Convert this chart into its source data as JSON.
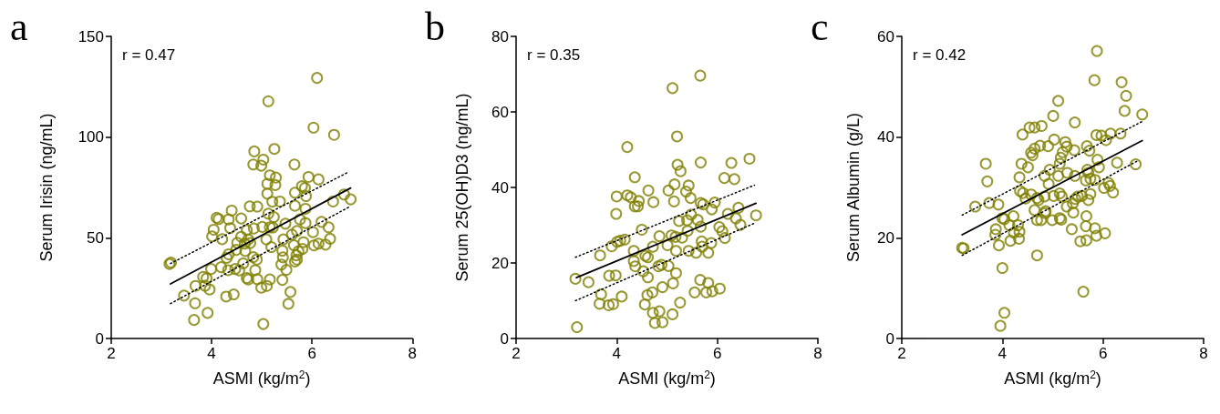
{
  "chart_data": [
    {
      "type": "scatter",
      "title": "a",
      "xlabel": "ASMI (kg/m$^{2}$)",
      "ylabel": "Serum Irisin (ng/mL)",
      "annotations": [
        "r = 0.47"
      ],
      "xlim": [
        2,
        8
      ],
      "xticks": [
        2,
        4,
        6,
        8
      ],
      "ylim": [
        0,
        150
      ],
      "yticks": [
        0,
        50,
        100,
        150
      ],
      "grid": false,
      "marker": "circle",
      "series": [
        {
          "color": "#808000",
          "x": [
            6.1,
            5.13,
            6.03,
            6.44,
            5.25,
            4.85,
            5.03,
            4.83,
            4.99,
            5.65,
            5.16,
            5.28,
            5.93,
            6.13,
            5.11,
            5.27,
            5.8,
            5.86,
            5.66,
            5.88,
            5.11,
            5.21,
            5.36,
            6.42,
            6.64,
            6.77,
            4.76,
            4.91,
            5.66,
            5.87,
            5.13,
            5.24,
            4.4,
            4.1,
            4.14,
            4.34,
            4.59,
            5.47,
            5.76,
            5.87,
            6.19,
            6.33,
            4.37,
            4.04,
            4.01,
            4.21,
            4.7,
            4.84,
            5.01,
            5.16,
            5.22,
            5.7,
            5.6,
            6.02,
            4.59,
            4.73,
            5.09,
            5.43,
            4.51,
            4.66,
            4.77,
            5.19,
            5.64,
            5.83,
            6.04,
            6.13,
            6.27,
            6.36,
            4.49,
            4.67,
            5.41,
            5.73,
            5.81,
            4.34,
            4.3,
            4.83,
            4.9,
            5.42,
            5.69,
            5.7,
            5.66,
            3.19,
            3.16,
            4.63,
            5.39,
            3.99,
            4.19,
            4.33,
            4.47,
            4.55,
            4.87,
            5.49,
            3.83,
            3.9,
            4.7,
            4.73,
            4.91,
            5.16,
            5.41,
            3.68,
            3.87,
            3.96,
            4.99,
            5.1,
            3.45,
            4.29,
            4.44,
            5.57,
            3.67,
            5.53,
            3.92,
            3.65,
            5.03
          ],
          "values": [
            129.4,
            117.8,
            104.7,
            101.1,
            94.1,
            92.9,
            88.8,
            86.4,
            85.8,
            86.4,
            81.0,
            79.9,
            80.2,
            79.0,
            76.8,
            76.2,
            75.6,
            74.7,
            72.4,
            70.7,
            71.9,
            67.9,
            68.0,
            68.0,
            71.5,
            69.1,
            65.6,
            65.5,
            65.9,
            64.4,
            62.0,
            60.3,
            63.5,
            59.9,
            59.3,
            59.1,
            59.6,
            57.0,
            59.1,
            57.3,
            57.9,
            55.2,
            54.8,
            54.0,
            50.7,
            49.3,
            53.8,
            54.6,
            55.4,
            55.2,
            55.1,
            53.4,
            51.6,
            52.8,
            50.5,
            49.2,
            49.2,
            49.2,
            47.5,
            47.1,
            47.4,
            45.4,
            46.3,
            47.8,
            46.2,
            47.1,
            46.6,
            49.5,
            44.0,
            43.4,
            43.6,
            43.3,
            44.5,
            41.8,
            40.0,
            40.4,
            39.2,
            40.3,
            41.3,
            39.2,
            38.2,
            37.7,
            37.0,
            37.3,
            36.7,
            34.5,
            35.4,
            33.9,
            34.5,
            33.8,
            33.9,
            34.1,
            30.6,
            29.9,
            30.0,
            29.3,
            29.4,
            29.3,
            29.1,
            26.1,
            26.2,
            24.3,
            25.2,
            26.1,
            21.3,
            20.8,
            21.9,
            23.1,
            17.5,
            17.2,
            12.7,
            9.2,
            7.2
          ]
        },
        {
          "type": "line",
          "color": "#000000",
          "line_style": "solid",
          "marker": "none",
          "x": [
            3.18,
            6.77
          ],
          "values": [
            27.1,
            74.7
          ]
        },
        {
          "type": "line",
          "color": "#000000",
          "line_style": "dotted",
          "marker": "none",
          "x": [
            3.18,
            6.74
          ],
          "values": [
            37.2,
            82.8
          ]
        },
        {
          "type": "line",
          "color": "#000000",
          "line_style": "dotted",
          "marker": "none",
          "x": [
            3.18,
            6.74
          ],
          "values": [
            17.3,
            65.3
          ]
        }
      ]
    },
    {
      "type": "scatter",
      "title": "b",
      "xlabel": "ASMI (kg/m$^{2}$)",
      "ylabel": "Serum 25(OH)D3 (ng/mL)",
      "annotations": [
        "r = 0.35"
      ],
      "xlim": [
        2,
        8
      ],
      "xticks": [
        2,
        4,
        6,
        8
      ],
      "ylim": [
        0,
        80
      ],
      "yticks": [
        0,
        20,
        40,
        60,
        80
      ],
      "grid": false,
      "marker": "circle",
      "series": [
        {
          "color": "#808000",
          "x": [
            5.66,
            5.11,
            5.2,
            4.21,
            5.67,
            5.21,
            5.27,
            6.28,
            6.64,
            4.36,
            6.14,
            6.34,
            5.15,
            5.43,
            5.03,
            4.63,
            5.38,
            4.0,
            4.21,
            4.28,
            4.44,
            4.36,
            4.42,
            4.73,
            5.14,
            5.47,
            5.67,
            5.72,
            5.95,
            5.89,
            6.42,
            6.21,
            3.99,
            5.24,
            5.4,
            5.48,
            5.61,
            6.77,
            6.37,
            6.46,
            4.5,
            5.41,
            5.67,
            6.04,
            6.1,
            6.15,
            4.85,
            5.09,
            5.17,
            5.3,
            5.01,
            4.01,
            4.07,
            4.16,
            3.9,
            4.72,
            5.69,
            5.88,
            5.7,
            3.67,
            4.34,
            4.57,
            4.62,
            5.18,
            5.43,
            5.58,
            5.82,
            4.34,
            4.37,
            4.83,
            4.89,
            5.03,
            4.53,
            5.18,
            3.18,
            3.44,
            3.85,
            3.98,
            4.62,
            5.12,
            4.91,
            5.66,
            5.82,
            5.55,
            5.78,
            5.9,
            6.05,
            3.69,
            4.1,
            4.61,
            4.71,
            3.66,
            3.84,
            3.93,
            4.56,
            5.26,
            4.72,
            4.85,
            5.11,
            4.76,
            4.91,
            3.21
          ],
          "values": [
            69.6,
            66.3,
            53.5,
            50.7,
            46.6,
            46.0,
            44.3,
            46.5,
            47.6,
            42.7,
            42.5,
            42.2,
            40.8,
            40.5,
            39.2,
            39.2,
            38.9,
            37.6,
            37.9,
            37.4,
            36.4,
            35.0,
            35.0,
            36.1,
            36.3,
            37.2,
            35.9,
            35.5,
            36.0,
            34.2,
            34.6,
            33.0,
            33.0,
            31.1,
            31.3,
            32.8,
            31.4,
            32.6,
            31.8,
            30.1,
            28.8,
            28.5,
            29.6,
            29.5,
            28.4,
            26.6,
            27.1,
            27.3,
            26.9,
            26.7,
            24.7,
            25.6,
            25.9,
            26.2,
            24.4,
            24.3,
            25.7,
            25.3,
            24.3,
            22.0,
            23.2,
            21.9,
            21.5,
            23.2,
            23.2,
            22.7,
            22.7,
            20.5,
            19.1,
            19.1,
            19.5,
            19.2,
            17.8,
            17.3,
            15.8,
            14.9,
            16.6,
            16.7,
            16.2,
            14.6,
            13.6,
            15.5,
            14.7,
            12.2,
            12.2,
            12.5,
            13.2,
            11.7,
            11.1,
            11.5,
            12.2,
            9.2,
            8.8,
            9.1,
            9.0,
            9.5,
            6.8,
            7.2,
            6.4,
            4.1,
            4.3,
            3.0
          ]
        },
        {
          "type": "line",
          "color": "#000000",
          "line_style": "solid",
          "marker": "none",
          "x": [
            3.2,
            6.77
          ],
          "values": [
            16.1,
            35.8
          ]
        },
        {
          "type": "line",
          "color": "#000000",
          "line_style": "dotted",
          "marker": "none",
          "x": [
            3.18,
            6.74
          ],
          "values": [
            21.5,
            40.6
          ]
        },
        {
          "type": "line",
          "color": "#000000",
          "line_style": "dotted",
          "marker": "none",
          "x": [
            3.18,
            6.77
          ],
          "values": [
            10.0,
            30.7
          ]
        }
      ]
    },
    {
      "type": "scatter",
      "title": "c",
      "xlabel": "ASMI (kg/m$^{2}$)",
      "ylabel": "Serum Albumin (g/L)",
      "annotations": [
        "r = 0.42"
      ],
      "xlim": [
        2,
        8
      ],
      "xticks": [
        2,
        4,
        6,
        8
      ],
      "ylim": [
        0,
        60
      ],
      "yticks": [
        0,
        20,
        40,
        60
      ],
      "grid": false,
      "marker": "circle",
      "series": [
        {
          "color": "#808000",
          "x": [
            5.88,
            5.83,
            6.37,
            6.46,
            6.43,
            6.78,
            5.11,
            5.01,
            5.44,
            4.4,
            4.54,
            4.64,
            4.78,
            5.87,
            5.97,
            6.06,
            6.15,
            6.35,
            5.03,
            5.25,
            5.28,
            4.91,
            4.75,
            4.64,
            4.57,
            4.6,
            5.43,
            5.68,
            5.73,
            5.2,
            5.16,
            5.89,
            6.28,
            6.65,
            3.67,
            4.38,
            4.51,
            5.14,
            5.92,
            4.94,
            5.69,
            5.71,
            4.84,
            5.11,
            5.29,
            5.44,
            3.7,
            4.34,
            4.92,
            5.66,
            5.75,
            5.84,
            6.11,
            6.02,
            6.14,
            6.2,
            4.35,
            4.41,
            4.46,
            4.57,
            4.69,
            4.72,
            4.84,
            5.02,
            5.14,
            5.18,
            5.45,
            5.5,
            5.58,
            5.75,
            5.71,
            5.4,
            5.28,
            3.46,
            3.74,
            3.92,
            4.64,
            4.86,
            4.0,
            4.04,
            4.22,
            4.14,
            4.31,
            4.69,
            4.77,
            4.85,
            4.99,
            5.14,
            5.17,
            5.41,
            5.67,
            5.66,
            5.84,
            6.04,
            5.87,
            5.38,
            3.87,
            3.86,
            4.23,
            4.34,
            4.16,
            4.33,
            3.93,
            5.55,
            5.67,
            3.2,
            3.23,
            4.69,
            4.0,
            5.61,
            4.04,
            3.96
          ],
          "values": [
            57.1,
            51.3,
            50.9,
            48.2,
            45.2,
            44.5,
            47.2,
            44.2,
            42.9,
            40.5,
            41.9,
            41.9,
            42.2,
            40.4,
            40.3,
            39.4,
            40.7,
            40.7,
            39.5,
            39.0,
            38.1,
            38.2,
            38.3,
            37.7,
            36.9,
            36.4,
            37.4,
            38.2,
            37.3,
            37.0,
            35.9,
            35.5,
            34.9,
            34.6,
            34.7,
            34.7,
            34.0,
            34.7,
            34.0,
            33.5,
            33.5,
            32.9,
            32.3,
            32.3,
            32.9,
            32.3,
            31.2,
            32.0,
            30.7,
            31.4,
            31.7,
            31.5,
            30.9,
            29.9,
            30.3,
            29.0,
            29.3,
            28.9,
            27.8,
            28.6,
            27.9,
            27.5,
            28.2,
            28.3,
            28.8,
            28.2,
            27.7,
            28.2,
            28.3,
            28.7,
            27.5,
            26.8,
            26.2,
            26.2,
            26.9,
            26.6,
            25.5,
            25.3,
            23.9,
            23.7,
            24.3,
            22.5,
            22.5,
            23.5,
            23.5,
            24.9,
            23.5,
            23.9,
            23.6,
            25.0,
            24.3,
            22.3,
            21.9,
            20.9,
            20.4,
            21.7,
            21.7,
            20.6,
            21.0,
            21.2,
            19.4,
            19.8,
            18.5,
            19.3,
            19.5,
            18.0,
            17.9,
            16.5,
            14.0,
            9.3,
            5.1,
            2.5
          ]
        },
        {
          "type": "line",
          "color": "#000000",
          "line_style": "solid",
          "marker": "none",
          "x": [
            3.2,
            6.78
          ],
          "values": [
            20.6,
            39.3
          ]
        },
        {
          "type": "line",
          "color": "#000000",
          "line_style": "dotted",
          "marker": "none",
          "x": [
            3.2,
            6.78
          ],
          "values": [
            24.5,
            43.1
          ]
        },
        {
          "type": "line",
          "color": "#000000",
          "line_style": "dotted",
          "marker": "none",
          "x": [
            3.2,
            6.71
          ],
          "values": [
            16.5,
            35.4
          ]
        }
      ]
    }
  ]
}
